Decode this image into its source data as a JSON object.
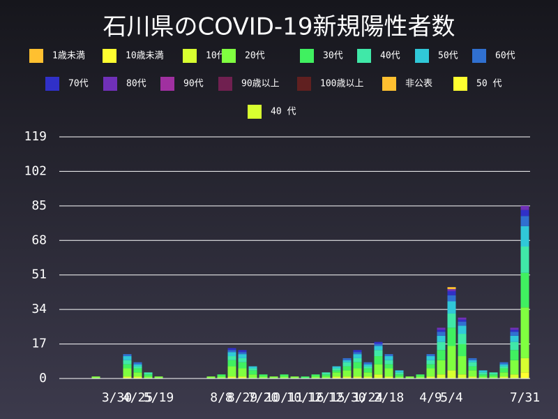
{
  "chart_data": {
    "type": "stacked_bar",
    "title": "石川県のCOVID-19新規陽性者数",
    "categories": [
      null,
      null,
      null,
      null,
      null,
      "3/30",
      null,
      "4/25",
      null,
      "5/19",
      null,
      null,
      null,
      null,
      null,
      "8/8",
      null,
      "8/29",
      null,
      "7/20",
      null,
      "10/11",
      null,
      "10/16",
      null,
      "12/15",
      null,
      "12/30",
      null,
      "1/24",
      null,
      "2/18",
      null,
      null,
      null,
      "4/9",
      null,
      "5/4",
      null,
      null,
      null,
      null,
      null,
      null,
      "7/31"
    ],
    "ylim": [
      0,
      119
    ],
    "yticks": [
      0,
      17,
      34,
      51,
      68,
      85,
      102,
      119
    ],
    "grid": true,
    "series": [
      {
        "name": "1歳未満",
        "color": "#ffc030",
        "values": [
          0,
          0,
          0,
          0,
          0,
          0,
          0,
          0,
          0,
          0,
          0,
          0,
          0,
          0,
          0,
          0,
          0,
          0,
          0,
          0,
          0,
          0,
          0,
          0,
          0,
          0,
          0,
          0,
          0,
          0,
          0,
          0,
          0,
          0,
          0,
          0,
          0,
          0,
          0,
          0,
          0,
          0,
          0,
          0,
          0
        ]
      },
      {
        "name": "10歳未満",
        "color": "#ffff30",
        "values": [
          0,
          0,
          0,
          0,
          0,
          0,
          0,
          0,
          0,
          0,
          0,
          0,
          0,
          0,
          0,
          0,
          0,
          0,
          0,
          0,
          0,
          0,
          0,
          0,
          0,
          0,
          0,
          0,
          0,
          0,
          0,
          0,
          0,
          0,
          0,
          0,
          0,
          0,
          0,
          0,
          0,
          0,
          0,
          0,
          3
        ]
      },
      {
        "name": "10代",
        "color": "#d8ff30",
        "values": [
          0,
          0,
          0,
          0,
          0,
          0,
          1,
          1,
          0,
          0,
          0,
          0,
          0,
          0,
          0,
          0,
          1,
          1,
          0,
          0,
          0,
          0,
          0,
          0,
          0,
          0,
          1,
          1,
          1,
          1,
          2,
          1,
          0,
          0,
          0,
          1,
          2,
          4,
          2,
          1,
          0,
          0,
          1,
          2,
          7
        ]
      },
      {
        "name": "20代",
        "color": "#80ff40",
        "values": [
          0,
          0,
          0,
          1,
          0,
          0,
          4,
          2,
          1,
          1,
          0,
          0,
          0,
          0,
          1,
          1,
          5,
          4,
          2,
          1,
          1,
          1,
          1,
          0,
          1,
          1,
          2,
          3,
          4,
          2,
          5,
          4,
          1,
          1,
          1,
          4,
          7,
          12,
          9,
          3,
          1,
          1,
          2,
          7,
          25
        ]
      },
      {
        "name": "30代",
        "color": "#40f060",
        "values": [
          0,
          0,
          0,
          0,
          0,
          0,
          2,
          2,
          1,
          0,
          0,
          0,
          0,
          0,
          0,
          1,
          3,
          3,
          2,
          1,
          0,
          1,
          0,
          1,
          1,
          1,
          1,
          2,
          3,
          2,
          4,
          2,
          1,
          0,
          1,
          2,
          5,
          9,
          6,
          2,
          1,
          1,
          2,
          5,
          17
        ]
      },
      {
        "name": "40代",
        "color": "#40e8a8",
        "values": [
          0,
          0,
          0,
          0,
          0,
          0,
          2,
          1,
          1,
          0,
          0,
          0,
          0,
          0,
          0,
          0,
          2,
          2,
          1,
          0,
          0,
          0,
          0,
          0,
          0,
          1,
          1,
          2,
          2,
          1,
          3,
          2,
          1,
          0,
          0,
          2,
          4,
          7,
          5,
          2,
          1,
          1,
          1,
          4,
          13
        ]
      },
      {
        "name": "50代",
        "color": "#30c8d8",
        "values": [
          0,
          0,
          0,
          0,
          0,
          0,
          2,
          1,
          0,
          0,
          0,
          0,
          0,
          0,
          0,
          0,
          2,
          2,
          1,
          0,
          0,
          0,
          0,
          0,
          0,
          0,
          1,
          1,
          2,
          1,
          2,
          2,
          1,
          0,
          0,
          2,
          3,
          6,
          4,
          1,
          1,
          0,
          1,
          3,
          10
        ]
      },
      {
        "name": "60代",
        "color": "#3070d0",
        "values": [
          0,
          0,
          0,
          0,
          0,
          0,
          1,
          1,
          0,
          0,
          0,
          0,
          0,
          0,
          0,
          0,
          1,
          1,
          0,
          0,
          0,
          0,
          0,
          0,
          0,
          0,
          0,
          1,
          1,
          1,
          1,
          1,
          0,
          0,
          0,
          1,
          2,
          3,
          2,
          1,
          0,
          0,
          1,
          2,
          5
        ]
      },
      {
        "name": "70代",
        "color": "#3030c8",
        "values": [
          0,
          0,
          0,
          0,
          0,
          0,
          0,
          0,
          0,
          0,
          0,
          0,
          0,
          0,
          0,
          0,
          1,
          1,
          0,
          0,
          0,
          0,
          0,
          0,
          0,
          0,
          0,
          0,
          1,
          0,
          1,
          0,
          0,
          0,
          0,
          0,
          1,
          2,
          1,
          0,
          0,
          0,
          0,
          1,
          3
        ]
      },
      {
        "name": "80代",
        "color": "#7030b8",
        "values": [
          0,
          0,
          0,
          0,
          0,
          0,
          0,
          0,
          0,
          0,
          0,
          0,
          0,
          0,
          0,
          0,
          0,
          0,
          0,
          0,
          0,
          0,
          0,
          0,
          0,
          0,
          0,
          0,
          0,
          0,
          0,
          0,
          0,
          0,
          0,
          0,
          1,
          1,
          1,
          0,
          0,
          0,
          0,
          1,
          2
        ]
      },
      {
        "name": "90代",
        "color": "#a030a0",
        "values": [
          0,
          0,
          0,
          0,
          0,
          0,
          0,
          0,
          0,
          0,
          0,
          0,
          0,
          0,
          0,
          0,
          0,
          0,
          0,
          0,
          0,
          0,
          0,
          0,
          0,
          0,
          0,
          0,
          0,
          0,
          0,
          0,
          0,
          0,
          0,
          0,
          0,
          0,
          0,
          0,
          0,
          0,
          0,
          0,
          0
        ]
      },
      {
        "name": "90歳以上",
        "color": "#702050",
        "values": [
          0,
          0,
          0,
          0,
          0,
          0,
          0,
          0,
          0,
          0,
          0,
          0,
          0,
          0,
          0,
          0,
          0,
          0,
          0,
          0,
          0,
          0,
          0,
          0,
          0,
          0,
          0,
          0,
          0,
          0,
          0,
          0,
          0,
          0,
          0,
          0,
          0,
          0,
          0,
          0,
          0,
          0,
          0,
          0,
          0
        ]
      },
      {
        "name": "100歳以上",
        "color": "#602020",
        "values": [
          0,
          0,
          0,
          0,
          0,
          0,
          0,
          0,
          0,
          0,
          0,
          0,
          0,
          0,
          0,
          0,
          0,
          0,
          0,
          0,
          0,
          0,
          0,
          0,
          0,
          0,
          0,
          0,
          0,
          0,
          0,
          0,
          0,
          0,
          0,
          0,
          0,
          0,
          0,
          0,
          0,
          0,
          0,
          0,
          0
        ]
      },
      {
        "name": "非公表",
        "color": "#ffc030",
        "values": [
          0,
          0,
          0,
          0,
          0,
          0,
          0,
          0,
          0,
          0,
          0,
          0,
          0,
          0,
          0,
          0,
          0,
          0,
          0,
          0,
          0,
          0,
          0,
          0,
          0,
          0,
          0,
          0,
          0,
          0,
          0,
          0,
          0,
          0,
          0,
          0,
          0,
          1,
          0,
          0,
          0,
          0,
          0,
          0,
          0
        ]
      },
      {
        "name": "50 代",
        "color": "#ffff30",
        "values": [
          0,
          0,
          0,
          0,
          0,
          0,
          0,
          0,
          0,
          0,
          0,
          0,
          0,
          0,
          0,
          0,
          0,
          0,
          0,
          0,
          0,
          0,
          0,
          0,
          0,
          0,
          0,
          0,
          0,
          0,
          0,
          0,
          0,
          0,
          0,
          0,
          0,
          0,
          0,
          0,
          0,
          0,
          0,
          0,
          0
        ]
      },
      {
        "name": "40 代",
        "color": "#d8ff30",
        "values": [
          0,
          0,
          0,
          0,
          0,
          0,
          0,
          0,
          0,
          0,
          0,
          0,
          0,
          0,
          0,
          0,
          0,
          0,
          0,
          0,
          0,
          0,
          0,
          0,
          0,
          0,
          0,
          0,
          0,
          0,
          0,
          0,
          0,
          0,
          0,
          0,
          0,
          0,
          0,
          0,
          0,
          0,
          0,
          0,
          0
        ]
      }
    ]
  }
}
